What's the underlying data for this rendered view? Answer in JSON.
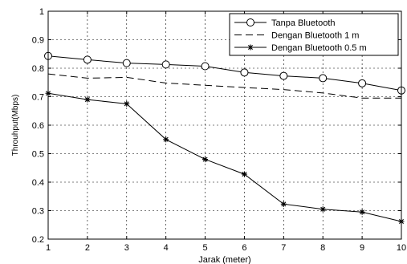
{
  "chart_data": {
    "type": "line",
    "title": "",
    "xlabel": "Jarak (meter)",
    "ylabel": "Throuhput(Mbps)",
    "xlim": [
      1,
      10
    ],
    "ylim": [
      0.2,
      1
    ],
    "x_ticks": [
      "1",
      "2",
      "3",
      "4",
      "5",
      "6",
      "7",
      "8",
      "9",
      "10"
    ],
    "y_ticks": [
      "0.2",
      "0.3",
      "0.4",
      "0.5",
      "0.6",
      "0.7",
      "0.8",
      "0.9",
      "1"
    ],
    "grid": true,
    "legend_position": "top-right",
    "x": [
      1,
      2,
      3,
      4,
      5,
      6,
      7,
      8,
      9,
      10
    ],
    "series": [
      {
        "name": "Tanpa Bluetooth",
        "marker": "circle",
        "line_style": "solid",
        "values": [
          0.843,
          0.83,
          0.818,
          0.813,
          0.807,
          0.785,
          0.773,
          0.765,
          0.747,
          0.722
        ]
      },
      {
        "name": "Dengan Bluetooth  1 m",
        "marker": "none",
        "line_style": "dashed",
        "values": [
          0.78,
          0.765,
          0.768,
          0.748,
          0.74,
          0.732,
          0.725,
          0.713,
          0.695,
          0.695
        ]
      },
      {
        "name": "Dengan Bluetooth 0.5 m",
        "marker": "star",
        "line_style": "solid",
        "values": [
          0.712,
          0.69,
          0.675,
          0.55,
          0.48,
          0.428,
          0.323,
          0.305,
          0.295,
          0.262
        ]
      }
    ]
  }
}
